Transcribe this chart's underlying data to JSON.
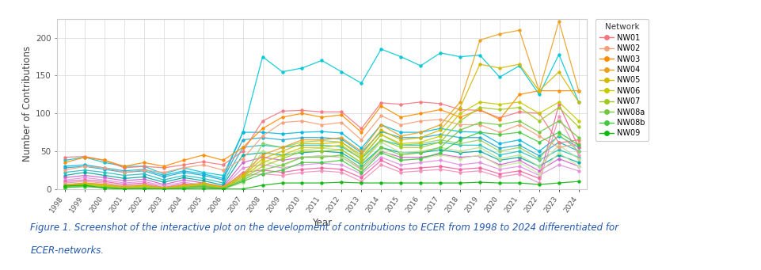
{
  "years": [
    1998,
    1999,
    2000,
    2001,
    2002,
    2003,
    2004,
    2005,
    2006,
    2007,
    2008,
    2009,
    2010,
    2011,
    2012,
    2013,
    2014,
    2015,
    2016,
    2017,
    2018,
    2019,
    2020,
    2021,
    2022,
    2023,
    2024
  ],
  "networks": [
    {
      "name": "NW01",
      "color": "#f4777f",
      "values": [
        42,
        43,
        38,
        28,
        30,
        28,
        32,
        36,
        32,
        50,
        90,
        103,
        104,
        102,
        102,
        80,
        114,
        112,
        115,
        113,
        105,
        104,
        94,
        102,
        100,
        61,
        65
      ]
    },
    {
      "name": "NW02",
      "color": "#f4a07a",
      "values": [
        25,
        30,
        28,
        22,
        25,
        22,
        28,
        32,
        25,
        40,
        70,
        88,
        90,
        85,
        88,
        65,
        97,
        85,
        90,
        92,
        85,
        85,
        75,
        85,
        70,
        55,
        60
      ]
    },
    {
      "name": "NW03",
      "color": "#ff8c00",
      "values": [
        35,
        42,
        38,
        30,
        35,
        30,
        38,
        45,
        38,
        55,
        80,
        95,
        100,
        95,
        98,
        75,
        110,
        95,
        100,
        105,
        95,
        105,
        92,
        125,
        130,
        130,
        130
      ]
    },
    {
      "name": "NW04",
      "color": "#e8a020",
      "values": [
        5,
        8,
        6,
        3,
        5,
        2,
        5,
        8,
        3,
        20,
        45,
        55,
        65,
        65,
        68,
        50,
        85,
        70,
        75,
        85,
        115,
        197,
        205,
        210,
        130,
        222,
        130
      ]
    },
    {
      "name": "NW05",
      "color": "#d4b800",
      "values": [
        4,
        7,
        5,
        2,
        4,
        1,
        4,
        7,
        2,
        18,
        40,
        50,
        60,
        60,
        62,
        45,
        78,
        65,
        68,
        78,
        108,
        165,
        160,
        165,
        130,
        155,
        115
      ]
    },
    {
      "name": "NW06",
      "color": "#c8c800",
      "values": [
        3,
        6,
        4,
        1,
        3,
        1,
        3,
        6,
        1,
        16,
        35,
        45,
        55,
        55,
        58,
        40,
        72,
        60,
        62,
        70,
        100,
        115,
        112,
        115,
        100,
        115,
        90
      ]
    },
    {
      "name": "NW07",
      "color": "#a0c820",
      "values": [
        3,
        5,
        3,
        1,
        2,
        0,
        2,
        5,
        1,
        14,
        30,
        40,
        50,
        50,
        52,
        35,
        65,
        55,
        55,
        62,
        90,
        108,
        105,
        108,
        90,
        108,
        82
      ]
    },
    {
      "name": "NW08a",
      "color": "#70c840",
      "values": [
        2,
        4,
        2,
        0,
        1,
        0,
        2,
        4,
        0,
        12,
        25,
        32,
        42,
        42,
        45,
        28,
        55,
        45,
        48,
        55,
        78,
        88,
        85,
        90,
        75,
        90,
        68
      ]
    },
    {
      "name": "NW08b",
      "color": "#40c840",
      "values": [
        2,
        3,
        2,
        0,
        1,
        0,
        1,
        3,
        0,
        10,
        20,
        25,
        35,
        35,
        38,
        22,
        48,
        38,
        40,
        48,
        65,
        75,
        72,
        75,
        62,
        75,
        58
      ]
    },
    {
      "name": "NW09",
      "color": "#10b810",
      "values": [
        4,
        5,
        1,
        0,
        0,
        0,
        0,
        0,
        0,
        0,
        5,
        8,
        8,
        8,
        9,
        8,
        8,
        8,
        8,
        8,
        8,
        9,
        8,
        8,
        6,
        8,
        10
      ]
    }
  ],
  "extra_lines": [
    {
      "color": "#00c8d4",
      "values": [
        38,
        42,
        35,
        30,
        30,
        20,
        28,
        22,
        18,
        75,
        175,
        155,
        160,
        170,
        155,
        140,
        185,
        175,
        163,
        180,
        175,
        177,
        148,
        163,
        125,
        178,
        115
      ]
    },
    {
      "color": "#00b8e0",
      "values": [
        30,
        32,
        28,
        24,
        26,
        18,
        24,
        20,
        14,
        75,
        75,
        73,
        75,
        76,
        74,
        54,
        85,
        75,
        75,
        80,
        76,
        75,
        60,
        65,
        50,
        70,
        55
      ]
    },
    {
      "color": "#20a8d0",
      "values": [
        28,
        30,
        26,
        22,
        24,
        16,
        22,
        18,
        12,
        65,
        68,
        65,
        68,
        68,
        66,
        48,
        76,
        68,
        68,
        72,
        68,
        68,
        54,
        58,
        44,
        62,
        50
      ]
    },
    {
      "color": "#20c0c0",
      "values": [
        22,
        25,
        22,
        18,
        20,
        12,
        18,
        14,
        8,
        55,
        58,
        55,
        58,
        58,
        56,
        40,
        65,
        58,
        58,
        62,
        58,
        58,
        45,
        50,
        38,
        52,
        42
      ]
    },
    {
      "color": "#00a8a0",
      "values": [
        18,
        22,
        18,
        14,
        16,
        9,
        15,
        11,
        5,
        45,
        48,
        45,
        48,
        50,
        48,
        32,
        55,
        48,
        48,
        52,
        48,
        50,
        38,
        42,
        30,
        45,
        35
      ]
    },
    {
      "color": "#d060d0",
      "values": [
        15,
        18,
        15,
        11,
        13,
        6,
        12,
        8,
        3,
        35,
        42,
        38,
        42,
        44,
        42,
        26,
        50,
        42,
        42,
        46,
        42,
        44,
        32,
        38,
        24,
        40,
        30
      ]
    },
    {
      "color": "#e090e0",
      "values": [
        12,
        15,
        12,
        8,
        10,
        4,
        9,
        5,
        2,
        28,
        32,
        28,
        32,
        34,
        32,
        20,
        42,
        32,
        35,
        38,
        32,
        35,
        26,
        30,
        18,
        32,
        24
      ]
    },
    {
      "color": "#f060a0",
      "values": [
        10,
        12,
        10,
        6,
        8,
        2,
        7,
        3,
        1,
        22,
        25,
        22,
        26,
        28,
        26,
        15,
        38,
        26,
        28,
        30,
        26,
        28,
        20,
        24,
        14,
        112,
        55
      ]
    },
    {
      "color": "#f090b8",
      "values": [
        8,
        10,
        8,
        4,
        6,
        1,
        5,
        2,
        0,
        18,
        20,
        18,
        22,
        24,
        22,
        10,
        32,
        22,
        24,
        26,
        22,
        24,
        16,
        20,
        8,
        96,
        45
      ]
    },
    {
      "color": "#90d060",
      "values": [
        6,
        8,
        6,
        3,
        5,
        0,
        4,
        1,
        0,
        12,
        60,
        55,
        62,
        64,
        62,
        42,
        72,
        58,
        60,
        65,
        60,
        65,
        50,
        55,
        40,
        72,
        50
      ]
    },
    {
      "color": "#b8e090",
      "values": [
        5,
        6,
        5,
        2,
        3,
        0,
        2,
        0,
        0,
        10,
        50,
        42,
        52,
        54,
        52,
        34,
        62,
        48,
        50,
        55,
        50,
        55,
        40,
        45,
        30,
        58,
        40
      ]
    },
    {
      "color": "#c8e8a0",
      "values": [
        4,
        5,
        4,
        1,
        2,
        0,
        1,
        0,
        0,
        8,
        38,
        30,
        42,
        44,
        42,
        25,
        52,
        38,
        40,
        45,
        40,
        45,
        30,
        35,
        20,
        48,
        30
      ]
    }
  ],
  "legend_names": [
    "NW01",
    "NW02",
    "NW03",
    "NW04",
    "NW05",
    "NW06",
    "NW07",
    "NW08a",
    "NW08b",
    "NW09"
  ],
  "legend_colors": [
    "#f4777f",
    "#f4a07a",
    "#ff8c00",
    "#e8a020",
    "#d4b800",
    "#c8c800",
    "#a0c820",
    "#70c840",
    "#40c840",
    "#10b810"
  ],
  "ylabel": "Number of Contributions",
  "xlabel": "Year",
  "ylim": [
    0,
    225
  ],
  "yticks": [
    0,
    50,
    100,
    150,
    200
  ],
  "caption_line1": "Figure 1. Screenshot of the interactive plot on the development of contributions to ECER from 1998 to 2024 differentiated for",
  "caption_line2": "ECER-networks.",
  "bg_color": "#ffffff",
  "plot_bg": "#ffffff",
  "grid_color": "#d8d8d8",
  "border_color": "#cccccc"
}
